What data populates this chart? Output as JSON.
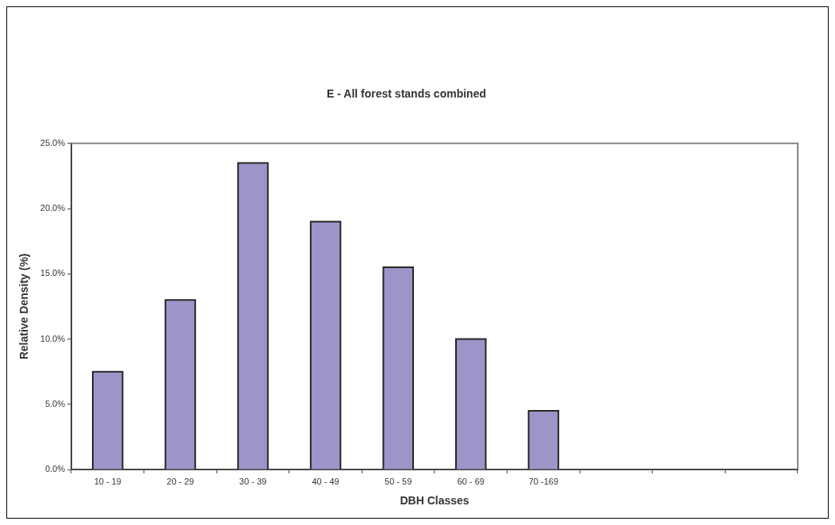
{
  "chart_data": {
    "type": "bar",
    "title": "E - All forest stands combined",
    "xlabel": "DBH Classes",
    "ylabel": "Relative Density (%)",
    "categories": [
      "10 - 19",
      "20 - 29",
      "30 - 39",
      "40 - 49",
      "50 - 59",
      "60 - 69",
      "70 -169",
      null,
      null,
      null
    ],
    "values": [
      7.5,
      13,
      23.5,
      19,
      15.5,
      10,
      4.5,
      null,
      null,
      null
    ],
    "color": "#9c95c8",
    "ylim": [
      0,
      25
    ],
    "yticks": [
      {
        "value": 0,
        "label": "0.0%"
      },
      {
        "value": 5,
        "label": "5.0%"
      },
      {
        "value": 10,
        "label": "10.0%"
      },
      {
        "value": 15,
        "label": "15.0%"
      },
      {
        "value": 20,
        "label": "20.0%"
      },
      {
        "value": 25,
        "label": "25.0%"
      }
    ]
  }
}
